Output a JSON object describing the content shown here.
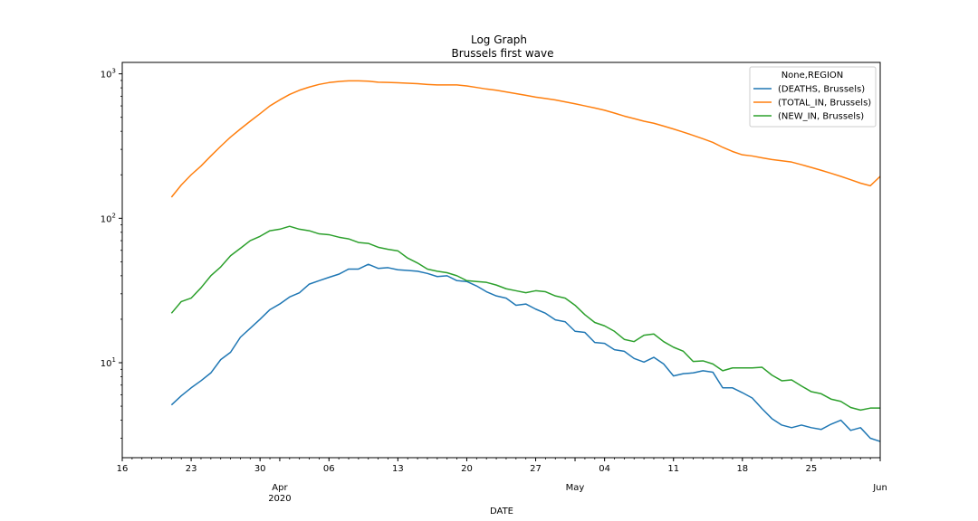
{
  "chart_data": {
    "type": "line",
    "title": "Log Graph",
    "subtitle": "Brussels first wave",
    "xlabel": "DATE",
    "ylabel": "",
    "yscale": "log",
    "ylim": [
      2.2,
      1200
    ],
    "xlim": [
      "2020-03-16",
      "2020-06-01"
    ],
    "grid": false,
    "legend": {
      "title": "None,REGION",
      "position": "top-right"
    },
    "x_ticks": [
      {
        "date": "2020-03-16",
        "label": "16"
      },
      {
        "date": "2020-03-23",
        "label": "23"
      },
      {
        "date": "2020-03-30",
        "label": "30"
      },
      {
        "date": "2020-04-01",
        "label": "Apr",
        "sublabel": "2020"
      },
      {
        "date": "2020-04-06",
        "label": "06"
      },
      {
        "date": "2020-04-13",
        "label": "13"
      },
      {
        "date": "2020-04-20",
        "label": "20"
      },
      {
        "date": "2020-04-27",
        "label": "27"
      },
      {
        "date": "2020-05-01",
        "label": "May"
      },
      {
        "date": "2020-05-04",
        "label": "04"
      },
      {
        "date": "2020-05-11",
        "label": "11"
      },
      {
        "date": "2020-05-18",
        "label": "18"
      },
      {
        "date": "2020-05-25",
        "label": "25"
      },
      {
        "date": "2020-06-01",
        "label": "Jun"
      }
    ],
    "y_ticks": [
      {
        "value": 10,
        "label": "10",
        "exp": "1"
      },
      {
        "value": 100,
        "label": "10",
        "exp": "2"
      },
      {
        "value": 1000,
        "label": "10",
        "exp": "3"
      }
    ],
    "x": [
      "2020-03-21",
      "2020-03-22",
      "2020-03-23",
      "2020-03-24",
      "2020-03-25",
      "2020-03-26",
      "2020-03-27",
      "2020-03-28",
      "2020-03-29",
      "2020-03-30",
      "2020-03-31",
      "2020-04-01",
      "2020-04-02",
      "2020-04-03",
      "2020-04-04",
      "2020-04-05",
      "2020-04-06",
      "2020-04-07",
      "2020-04-08",
      "2020-04-09",
      "2020-04-10",
      "2020-04-11",
      "2020-04-12",
      "2020-04-13",
      "2020-04-14",
      "2020-04-15",
      "2020-04-16",
      "2020-04-17",
      "2020-04-18",
      "2020-04-19",
      "2020-04-20",
      "2020-04-21",
      "2020-04-22",
      "2020-04-23",
      "2020-04-24",
      "2020-04-25",
      "2020-04-26",
      "2020-04-27",
      "2020-04-28",
      "2020-04-29",
      "2020-04-30",
      "2020-05-01",
      "2020-05-02",
      "2020-05-03",
      "2020-05-04",
      "2020-05-05",
      "2020-05-06",
      "2020-05-07",
      "2020-05-08",
      "2020-05-09",
      "2020-05-10",
      "2020-05-11",
      "2020-05-12",
      "2020-05-13",
      "2020-05-14",
      "2020-05-15",
      "2020-05-16",
      "2020-05-17",
      "2020-05-18",
      "2020-05-19",
      "2020-05-20",
      "2020-05-21",
      "2020-05-22",
      "2020-05-23",
      "2020-05-24",
      "2020-05-25",
      "2020-05-26",
      "2020-05-27",
      "2020-05-28",
      "2020-05-29",
      "2020-05-30",
      "2020-05-31",
      "2020-06-01"
    ],
    "series": [
      {
        "name": "(DEATHS, Brussels)",
        "color": "#1f77b4",
        "values": [
          5.1,
          5.9,
          6.7,
          7.5,
          8.5,
          10.5,
          11.8,
          15,
          17.3,
          20,
          23.3,
          25.5,
          28.5,
          30.5,
          35,
          37,
          39,
          41,
          44.5,
          44.5,
          48,
          45,
          45.5,
          44,
          43.5,
          43,
          41.5,
          39.5,
          40,
          37,
          36.5,
          34,
          31,
          29,
          28,
          25,
          25.5,
          23.5,
          22,
          19.8,
          19.2,
          16.5,
          16.2,
          13.8,
          13.6,
          12.3,
          12,
          10.7,
          10.1,
          10.9,
          9.8,
          8.1,
          8.4,
          8.5,
          8.8,
          8.6,
          6.7,
          6.7,
          6.2,
          5.7,
          4.8,
          4.1,
          3.7,
          3.55,
          3.7,
          3.55,
          3.45,
          3.75,
          4,
          3.4,
          3.55,
          3,
          2.85
        ]
      },
      {
        "name": "(TOTAL_IN, Brussels)",
        "color": "#ff7f0e",
        "values": [
          140,
          170,
          200,
          230,
          270,
          315,
          365,
          415,
          470,
          530,
          600,
          660,
          720,
          770,
          810,
          845,
          870,
          885,
          895,
          895,
          890,
          875,
          872,
          868,
          862,
          855,
          845,
          838,
          838,
          838,
          825,
          805,
          785,
          770,
          750,
          730,
          710,
          690,
          675,
          660,
          640,
          620,
          600,
          580,
          560,
          535,
          510,
          490,
          470,
          455,
          435,
          415,
          395,
          375,
          355,
          335,
          310,
          290,
          275,
          270,
          262,
          255,
          250,
          245,
          235,
          225,
          215,
          205,
          195,
          185,
          175,
          168,
          195
        ]
      },
      {
        "name": "(NEW_IN, Brussels)",
        "color": "#2ca02c",
        "values": [
          22,
          26.5,
          28,
          33,
          40,
          46,
          55,
          62,
          70,
          75,
          82,
          84,
          88,
          84,
          82,
          78,
          77,
          74,
          72,
          68,
          67,
          63,
          61,
          59.5,
          53,
          49,
          44.5,
          43,
          42,
          40,
          37,
          36.5,
          36,
          34.5,
          32.5,
          31.5,
          30.5,
          31.5,
          31,
          29,
          28,
          25,
          21.5,
          19,
          18,
          16.5,
          14.5,
          14,
          15.5,
          15.8,
          14,
          12.8,
          12,
          10.2,
          10.3,
          9.8,
          8.8,
          9.2,
          9.2,
          9.2,
          9.3,
          8.2,
          7.5,
          7.6,
          6.9,
          6.3,
          6.1,
          5.6,
          5.4,
          4.9,
          4.7,
          4.85,
          4.85
        ]
      }
    ]
  }
}
